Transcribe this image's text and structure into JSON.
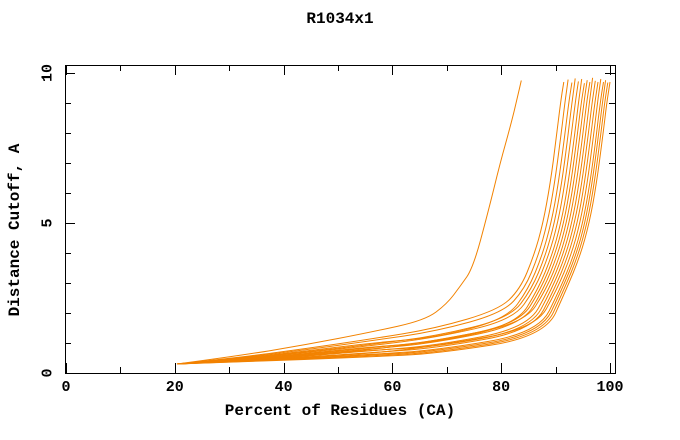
{
  "window": {
    "background": "#ffffff"
  },
  "colors": {
    "curve": "#F28200",
    "axis": "#000000",
    "text": "#000000",
    "background": "#ffffff"
  },
  "chart_data": {
    "type": "line",
    "title": "R1034x1",
    "xlabel": "Percent of Residues (CA)",
    "ylabel": "Distance Cutoff, A",
    "xlim": [
      0,
      100
    ],
    "ylim": [
      0,
      10
    ],
    "grid": false,
    "legend": null,
    "x_major_ticks": [
      0,
      20,
      40,
      60,
      80,
      100
    ],
    "x_minor_ticks": [
      10,
      30,
      50,
      70,
      90
    ],
    "y_major_ticks": [
      0,
      5,
      10
    ],
    "y_minor_ticks": [
      1,
      2,
      3,
      4,
      6,
      7,
      8,
      9
    ],
    "series_color": "#F28200",
    "series": [
      {
        "points": [
          [
            20.4,
            0.3
          ],
          [
            32,
            0.58
          ],
          [
            44,
            0.94
          ],
          [
            56,
            1.36
          ],
          [
            66,
            1.76
          ],
          [
            70,
            2.3
          ],
          [
            72.5,
            2.9
          ],
          [
            74.8,
            3.5
          ],
          [
            77.5,
            5.3
          ],
          [
            79.8,
            7.0
          ],
          [
            81.8,
            8.3
          ],
          [
            83.0,
            9.2
          ],
          [
            83.7,
            9.75
          ]
        ]
      },
      {
        "points": [
          [
            20.4,
            0.3
          ],
          [
            32,
            0.52
          ],
          [
            44,
            0.81
          ],
          [
            56,
            1.13
          ],
          [
            68,
            1.49
          ],
          [
            79.5,
            2.1
          ],
          [
            83.5,
            2.8
          ],
          [
            86.0,
            3.9
          ],
          [
            87.7,
            5.0
          ],
          [
            89.0,
            6.3
          ],
          [
            90.1,
            7.8
          ],
          [
            90.9,
            9.0
          ],
          [
            91.5,
            9.7
          ]
        ]
      },
      {
        "points": [
          [
            20.4,
            0.3
          ],
          [
            32,
            0.5
          ],
          [
            44,
            0.77
          ],
          [
            56,
            1.07
          ],
          [
            68,
            1.39
          ],
          [
            80.3,
            2.0
          ],
          [
            84.3,
            2.8
          ],
          [
            86.8,
            3.9
          ],
          [
            88.5,
            5.0
          ],
          [
            89.8,
            6.3
          ],
          [
            90.9,
            7.8
          ],
          [
            91.7,
            9.0
          ],
          [
            92.3,
            9.78
          ]
        ]
      },
      {
        "points": [
          [
            20.4,
            0.3
          ],
          [
            32,
            0.49
          ],
          [
            44,
            0.73
          ],
          [
            56,
            1.0
          ],
          [
            68,
            1.18
          ],
          [
            81.0,
            1.8
          ],
          [
            85.0,
            2.8
          ],
          [
            87.5,
            3.9
          ],
          [
            89.2,
            5.0
          ],
          [
            90.5,
            6.3
          ],
          [
            91.6,
            7.8
          ],
          [
            92.4,
            9.0
          ],
          [
            93.0,
            9.68
          ]
        ]
      },
      {
        "points": [
          [
            20.4,
            0.3
          ],
          [
            32,
            0.48
          ],
          [
            44,
            0.7
          ],
          [
            56,
            0.95
          ],
          [
            68,
            1.23
          ],
          [
            81.6,
            1.83
          ],
          [
            85.6,
            2.8
          ],
          [
            88.1,
            3.9
          ],
          [
            89.8,
            5.0
          ],
          [
            91.1,
            6.3
          ],
          [
            92.2,
            7.8
          ],
          [
            93.0,
            9.0
          ],
          [
            93.6,
            9.82
          ]
        ]
      },
      {
        "points": [
          [
            20.4,
            0.3
          ],
          [
            32,
            0.47
          ],
          [
            44,
            0.68
          ],
          [
            56,
            0.91
          ],
          [
            68,
            1.18
          ],
          [
            82.2,
            1.77
          ],
          [
            86.2,
            2.8
          ],
          [
            88.7,
            3.9
          ],
          [
            90.4,
            5.0
          ],
          [
            91.7,
            6.3
          ],
          [
            92.8,
            7.8
          ],
          [
            93.6,
            9.0
          ],
          [
            94.2,
            9.72
          ]
        ]
      },
      {
        "points": [
          [
            20.4,
            0.3
          ],
          [
            32,
            0.46
          ],
          [
            44,
            0.65
          ],
          [
            56,
            0.87
          ],
          [
            68,
            1.02
          ],
          [
            82.8,
            1.62
          ],
          [
            86.8,
            2.8
          ],
          [
            89.3,
            3.9
          ],
          [
            91.0,
            5.0
          ],
          [
            92.3,
            6.3
          ],
          [
            93.4,
            7.8
          ],
          [
            94.2,
            9.0
          ],
          [
            94.8,
            9.8
          ]
        ]
      },
      {
        "points": [
          [
            20.4,
            0.3
          ],
          [
            32,
            0.45
          ],
          [
            44,
            0.63
          ],
          [
            56,
            0.84
          ],
          [
            68,
            1.06
          ],
          [
            83.3,
            1.65
          ],
          [
            87.3,
            2.8
          ],
          [
            89.8,
            3.9
          ],
          [
            91.5,
            5.0
          ],
          [
            92.8,
            6.3
          ],
          [
            93.9,
            7.8
          ],
          [
            94.7,
            9.0
          ],
          [
            95.3,
            9.66
          ]
        ]
      },
      {
        "points": [
          [
            20.4,
            0.3
          ],
          [
            32,
            0.44
          ],
          [
            44,
            0.61
          ],
          [
            56,
            0.8
          ],
          [
            68,
            1.01
          ],
          [
            83.8,
            1.6
          ],
          [
            87.8,
            2.8
          ],
          [
            90.3,
            3.9
          ],
          [
            92.0,
            5.0
          ],
          [
            93.3,
            6.3
          ],
          [
            94.4,
            7.8
          ],
          [
            95.2,
            9.0
          ],
          [
            95.8,
            9.76
          ]
        ]
      },
      {
        "points": [
          [
            20.4,
            0.3
          ],
          [
            32,
            0.43
          ],
          [
            44,
            0.59
          ],
          [
            56,
            0.77
          ],
          [
            68,
            1.08
          ],
          [
            84.3,
            1.66
          ],
          [
            88.3,
            2.8
          ],
          [
            90.8,
            3.9
          ],
          [
            92.5,
            5.0
          ],
          [
            93.8,
            6.3
          ],
          [
            94.9,
            7.8
          ],
          [
            95.7,
            9.0
          ],
          [
            96.3,
            9.7
          ]
        ]
      },
      {
        "points": [
          [
            20.4,
            0.3
          ],
          [
            32,
            0.42
          ],
          [
            44,
            0.57
          ],
          [
            56,
            0.74
          ],
          [
            68,
            0.92
          ],
          [
            84.8,
            1.5
          ],
          [
            88.8,
            2.8
          ],
          [
            91.3,
            3.9
          ],
          [
            93.0,
            5.0
          ],
          [
            94.3,
            6.3
          ],
          [
            95.4,
            7.8
          ],
          [
            96.2,
            9.0
          ],
          [
            96.8,
            9.84
          ]
        ]
      },
      {
        "points": [
          [
            20.4,
            0.3
          ],
          [
            32,
            0.41
          ],
          [
            44,
            0.55
          ],
          [
            56,
            0.76
          ],
          [
            68,
            0.87
          ],
          [
            85.3,
            1.45
          ],
          [
            89.3,
            2.8
          ],
          [
            91.8,
            3.9
          ],
          [
            93.5,
            5.0
          ],
          [
            94.8,
            6.3
          ],
          [
            95.9,
            7.8
          ],
          [
            96.7,
            9.0
          ],
          [
            97.3,
            9.74
          ]
        ]
      },
      {
        "points": [
          [
            20.4,
            0.3
          ],
          [
            32,
            0.41
          ],
          [
            44,
            0.53
          ],
          [
            56,
            0.68
          ],
          [
            68,
            0.83
          ],
          [
            85.8,
            1.41
          ],
          [
            89.8,
            2.8
          ],
          [
            92.3,
            3.9
          ],
          [
            94.0,
            5.0
          ],
          [
            95.3,
            6.3
          ],
          [
            96.4,
            7.8
          ],
          [
            97.2,
            9.0
          ],
          [
            97.8,
            9.7
          ]
        ]
      },
      {
        "points": [
          [
            20.4,
            0.3
          ],
          [
            32,
            0.4
          ],
          [
            44,
            0.52
          ],
          [
            56,
            0.65
          ],
          [
            68,
            0.9
          ],
          [
            86.3,
            1.48
          ],
          [
            90.3,
            2.8
          ],
          [
            92.8,
            3.9
          ],
          [
            94.5,
            5.0
          ],
          [
            95.8,
            6.3
          ],
          [
            96.9,
            7.8
          ],
          [
            97.7,
            9.0
          ],
          [
            98.3,
            9.8
          ]
        ]
      },
      {
        "points": [
          [
            20.4,
            0.3
          ],
          [
            32,
            0.39
          ],
          [
            44,
            0.5
          ],
          [
            56,
            0.62
          ],
          [
            68,
            0.76
          ],
          [
            86.8,
            1.33
          ],
          [
            90.8,
            2.8
          ],
          [
            93.3,
            3.9
          ],
          [
            95.0,
            5.0
          ],
          [
            96.3,
            6.3
          ],
          [
            97.4,
            7.8
          ],
          [
            98.2,
            9.0
          ],
          [
            98.8,
            9.7
          ]
        ]
      },
      {
        "points": [
          [
            20.4,
            0.3
          ],
          [
            32,
            0.39
          ],
          [
            44,
            0.49
          ],
          [
            56,
            0.6
          ],
          [
            68,
            0.72
          ],
          [
            87.2,
            1.29
          ],
          [
            91.2,
            2.8
          ],
          [
            93.7,
            3.9
          ],
          [
            95.4,
            5.0
          ],
          [
            96.7,
            6.3
          ],
          [
            97.8,
            7.8
          ],
          [
            98.6,
            9.0
          ],
          [
            99.2,
            9.76
          ]
        ]
      },
      {
        "points": [
          [
            20.4,
            0.3
          ],
          [
            32,
            0.38
          ],
          [
            44,
            0.47
          ],
          [
            56,
            0.57
          ],
          [
            68,
            0.68
          ],
          [
            87.6,
            1.25
          ],
          [
            91.6,
            2.8
          ],
          [
            94.1,
            3.9
          ],
          [
            95.8,
            5.0
          ],
          [
            97.1,
            6.3
          ],
          [
            98.2,
            7.8
          ],
          [
            99.0,
            9.0
          ],
          [
            99.6,
            9.68
          ]
        ]
      },
      {
        "points": [
          [
            20.4,
            0.3
          ],
          [
            32,
            0.38
          ],
          [
            44,
            0.45
          ],
          [
            56,
            0.54
          ],
          [
            68,
            0.64
          ],
          [
            88.0,
            1.21
          ],
          [
            92.0,
            2.8
          ],
          [
            94.5,
            3.9
          ],
          [
            96.2,
            5.0
          ],
          [
            97.5,
            6.3
          ],
          [
            98.6,
            7.8
          ],
          [
            99.4,
            9.0
          ],
          [
            100.0,
            9.7
          ]
        ]
      }
    ]
  }
}
